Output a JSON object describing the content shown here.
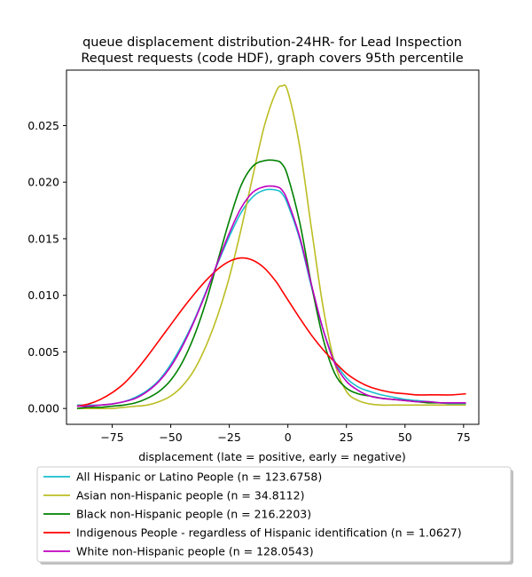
{
  "chart_data": {
    "type": "line",
    "title_lines": [
      "queue displacement distribution-24HR-  for Lead Inspection",
      "Request  requests (code HDF), graph covers 95th percentile"
    ],
    "xlabel": "displacement (late = positive, early = negative)",
    "ylabel": "",
    "xlim": [
      -94.5,
      81.5
    ],
    "ylim": [
      -0.0014,
      0.0299
    ],
    "x_ticks": [
      -75,
      -50,
      -25,
      0,
      25,
      50,
      75
    ],
    "x_tick_labels": [
      "−75",
      "−50",
      "−25",
      "0",
      "25",
      "50",
      "75"
    ],
    "y_ticks": [
      0.0,
      0.005,
      0.01,
      0.015,
      0.02,
      0.025
    ],
    "y_tick_labels": [
      "0.000",
      "0.005",
      "0.010",
      "0.015",
      "0.020",
      "0.025"
    ],
    "grid": false,
    "legend_placement": "below plot",
    "x": [
      -90,
      -85,
      -80,
      -75,
      -70,
      -65,
      -60,
      -55,
      -50,
      -45,
      -40,
      -35,
      -30,
      -25,
      -20,
      -15,
      -10,
      -5,
      -2.5,
      0,
      5,
      10,
      15,
      20,
      25,
      30,
      35,
      40,
      45,
      50,
      55,
      60,
      65,
      70,
      76
    ],
    "series": [
      {
        "name": "All Hispanic or Latino People (n = 123.6758)",
        "color": "#17becf",
        "values": [
          0.0003,
          0.0003,
          0.0003,
          0.0004,
          0.0006,
          0.001,
          0.0016,
          0.0025,
          0.0039,
          0.0057,
          0.0078,
          0.0103,
          0.0128,
          0.0152,
          0.0173,
          0.0187,
          0.0193,
          0.0193,
          0.019,
          0.018,
          0.015,
          0.0108,
          0.007,
          0.0042,
          0.0027,
          0.0019,
          0.0015,
          0.0012,
          0.001,
          0.0008,
          0.0007,
          0.0006,
          0.0005,
          0.0004,
          0.0004
        ]
      },
      {
        "name": "Asian non-Hispanic people (n = 34.8112)",
        "color": "#bcbd22",
        "values": [
          0.0,
          0.0,
          0.0,
          0.0,
          0.0001,
          0.0002,
          0.0003,
          0.0006,
          0.0011,
          0.002,
          0.0034,
          0.0055,
          0.0082,
          0.0116,
          0.0158,
          0.0205,
          0.025,
          0.028,
          0.0285,
          0.028,
          0.0232,
          0.016,
          0.009,
          0.004,
          0.0015,
          0.0007,
          0.0004,
          0.0003,
          0.0003,
          0.0003,
          0.0003,
          0.0003,
          0.0003,
          0.0003,
          0.0003
        ]
      },
      {
        "name": "Black non-Hispanic people (n = 216.2203)",
        "color": "#008000",
        "values": [
          0.0,
          0.0001,
          0.0001,
          0.0002,
          0.0003,
          0.0005,
          0.0009,
          0.0015,
          0.0025,
          0.0041,
          0.0064,
          0.0094,
          0.013,
          0.0166,
          0.0197,
          0.0214,
          0.0219,
          0.0219,
          0.0216,
          0.0205,
          0.0165,
          0.011,
          0.0062,
          0.0031,
          0.0018,
          0.0013,
          0.0011,
          0.0009,
          0.0008,
          0.0007,
          0.0006,
          0.0005,
          0.0005,
          0.0005,
          0.0005
        ]
      },
      {
        "name": "Indigenous People - regardless of Hispanic identification (n = 1.0627)",
        "color": "#ff0000",
        "values": [
          0.0002,
          0.0004,
          0.0008,
          0.0014,
          0.0022,
          0.0033,
          0.0046,
          0.006,
          0.0074,
          0.0088,
          0.0101,
          0.0113,
          0.0123,
          0.013,
          0.0133,
          0.0131,
          0.0124,
          0.0112,
          0.0104,
          0.0096,
          0.008,
          0.0065,
          0.0052,
          0.0041,
          0.0031,
          0.0024,
          0.0019,
          0.0016,
          0.0014,
          0.0013,
          0.0012,
          0.0012,
          0.0012,
          0.0012,
          0.0013
        ]
      },
      {
        "name": "White non-Hispanic people (n = 128.0543)",
        "color": "#bf00bf",
        "values": [
          0.0002,
          0.0002,
          0.0003,
          0.0004,
          0.0006,
          0.0009,
          0.0015,
          0.0024,
          0.0037,
          0.0055,
          0.0077,
          0.0102,
          0.0129,
          0.0155,
          0.0177,
          0.0191,
          0.0196,
          0.0196,
          0.0193,
          0.0183,
          0.0152,
          0.011,
          0.007,
          0.004,
          0.0024,
          0.0016,
          0.0011,
          0.0009,
          0.0008,
          0.0007,
          0.0006,
          0.0006,
          0.0005,
          0.0005,
          0.0005
        ]
      }
    ]
  }
}
